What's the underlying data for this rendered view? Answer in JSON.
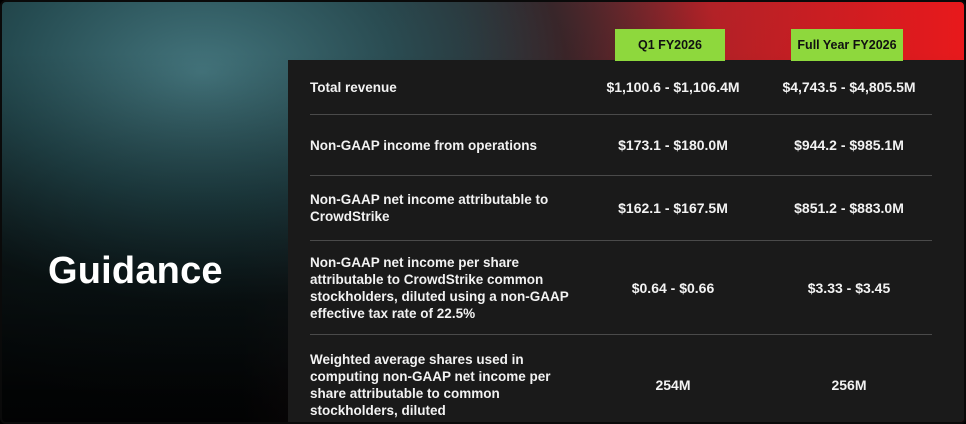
{
  "slide": {
    "title": "Guidance"
  },
  "columns": {
    "q1": "Q1 FY2026",
    "fy": "Full Year FY2026"
  },
  "rows": [
    {
      "label": "Total revenue",
      "q1": "$1,100.6 - $1,106.4M",
      "fy": "$4,743.5 - $4,805.5M"
    },
    {
      "label": "Non-GAAP income from operations",
      "q1": "$173.1 - $180.0M",
      "fy": "$944.2 - $985.1M"
    },
    {
      "label": "Non-GAAP net income attributable to CrowdStrike",
      "q1": "$162.1 - $167.5M",
      "fy": "$851.2 - $883.0M"
    },
    {
      "label": "Non-GAAP net income per share attributable to CrowdStrike common stockholders, diluted using a non-GAAP effective tax rate of 22.5%",
      "q1": "$0.64 - $0.66",
      "fy": "$3.33 - $3.45"
    },
    {
      "label": "Weighted average shares used in computing non-GAAP net income per share attributable to common stockholders, diluted",
      "q1": "254M",
      "fy": "256M"
    }
  ],
  "colors": {
    "badge": "#8ed83d",
    "panel": "#1a1a1a",
    "accent_red": "#e8191c"
  }
}
